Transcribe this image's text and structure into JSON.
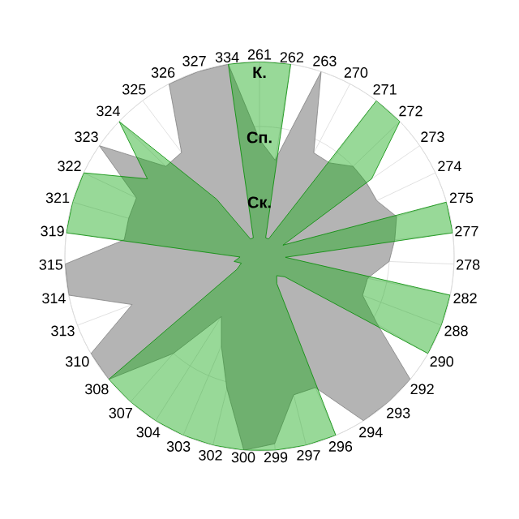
{
  "chart_data": {
    "type": "radar",
    "categories": [
      "261",
      "262",
      "263",
      "270",
      "271",
      "272",
      "273",
      "274",
      "275",
      "277",
      "278",
      "282",
      "288",
      "290",
      "292",
      "293",
      "294",
      "296",
      "297",
      "299",
      "300",
      "302",
      "303",
      "304",
      "307",
      "308",
      "310",
      "313",
      "314",
      "315",
      "319",
      "321",
      "322",
      "323",
      "324",
      "325",
      "326",
      "327",
      "334"
    ],
    "series": [
      {
        "color": "#b4b4b4",
        "values": [
          1.8,
          1.5,
          3,
          1.8,
          1.8,
          2,
          2,
          2,
          2.2,
          2.1,
          2,
          1.7,
          1.7,
          2.1,
          3,
          3,
          3,
          2.2,
          2.2,
          2.9,
          3,
          2.1,
          1.5,
          1.1,
          2,
          3,
          3,
          2.1,
          3,
          3,
          2.1,
          2.1,
          2.1,
          3,
          2,
          2,
          3,
          3,
          3
        ]
      },
      {
        "color": "#1aab1a",
        "values": [
          3,
          3,
          0.3,
          0.3,
          3,
          3,
          2.1,
          0.4,
          3,
          3,
          0.4,
          3,
          3,
          3,
          0.5,
          0.4,
          0.5,
          3,
          3,
          3,
          3,
          3,
          3,
          3,
          3,
          3,
          0.4,
          0.3,
          0.4,
          0.3,
          3,
          3,
          3,
          2.1,
          3,
          1.1,
          0.3,
          0.3,
          3
        ]
      }
    ],
    "ylim": [
      0,
      3
    ],
    "yticks": [
      {
        "value": 1,
        "label": "Ск."
      },
      {
        "value": 2,
        "label": "Сп."
      },
      {
        "value": 3,
        "label": "К."
      }
    ],
    "grid": true
  }
}
